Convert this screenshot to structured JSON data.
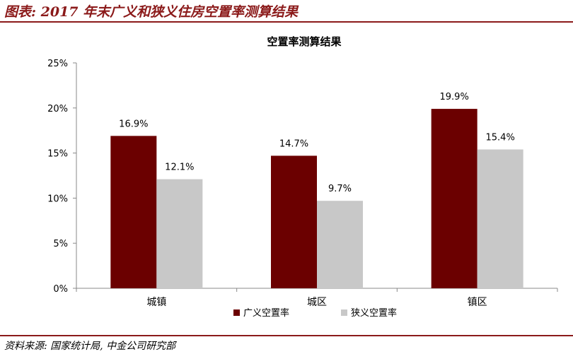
{
  "figure": {
    "title": "图表: 2017 年末广义和狭义住房空置率测算结果",
    "source": "资料来源: 国家统计局, 中金公司研究部"
  },
  "chart_data": {
    "type": "bar",
    "title": "空置率测算结果",
    "categories": [
      "城镇",
      "城区",
      "镇区"
    ],
    "series": [
      {
        "name": "广义空置率",
        "values": [
          16.9,
          14.7,
          19.9
        ],
        "labels": [
          "16.9%",
          "14.7%",
          "19.9%"
        ],
        "color": "#6b0000"
      },
      {
        "name": "狭义空置率",
        "values": [
          12.1,
          9.7,
          15.4
        ],
        "labels": [
          "12.1%",
          "9.7%",
          "15.4%"
        ],
        "color": "#c8c8c8"
      }
    ],
    "ylim": [
      0,
      25
    ],
    "yticks": [
      0,
      5,
      10,
      15,
      20,
      25
    ],
    "ytick_labels": [
      "0%",
      "5%",
      "10%",
      "15%",
      "20%",
      "25%"
    ],
    "xlabel": "",
    "ylabel": "",
    "grid": false,
    "legend_position": "bottom"
  }
}
